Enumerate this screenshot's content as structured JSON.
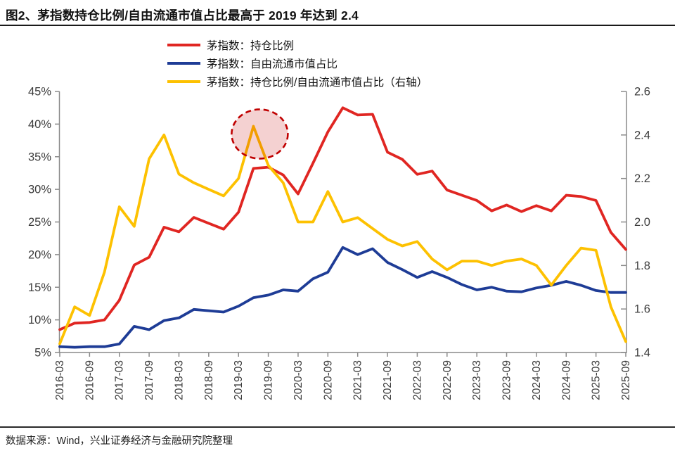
{
  "title": "图2、茅指数持仓比例/自由流通市值占比最高于 2019 年达到 2.4",
  "source": "数据来源：Wind，兴业证券经济与金融研究院整理",
  "chart_data": {
    "type": "line",
    "title": "茅指数持仓比例/自由流通市值占比最高于 2019 年达到 2.4",
    "grid": false,
    "legend_position": "top-center",
    "x_labels": [
      "2016-03",
      "2016-09",
      "2017-03",
      "2017-09",
      "2018-03",
      "2018-09",
      "2019-03",
      "2019-09",
      "2020-03",
      "2020-09",
      "2021-03",
      "2021-09",
      "2022-03",
      "2022-09",
      "2023-03",
      "2023-09",
      "2024-03",
      "2024-09",
      "2025-03",
      "2025-09"
    ],
    "points_per_label": 2,
    "left_axis": {
      "min": 5,
      "max": 45,
      "ticks": [
        "45%",
        "40%",
        "35%",
        "30%",
        "25%",
        "20%",
        "15%",
        "10%",
        "5%"
      ]
    },
    "right_axis": {
      "min": 1.4,
      "max": 2.6,
      "ticks": [
        "2.6",
        "2.4",
        "2.2",
        "2.0",
        "1.8",
        "1.6",
        "1.4"
      ]
    },
    "axis_color": "#8a8a8a",
    "tick_label_color": "#3c3c3c",
    "series": [
      {
        "name": "茅指数：持仓比例",
        "axis": "left",
        "color": "#e02622",
        "values": [
          8.5,
          9.5,
          9.6,
          10,
          13,
          18.4,
          19.6,
          24.2,
          23.5,
          25.7,
          24.8,
          23.9,
          26.5,
          33.2,
          33.4,
          32.2,
          29.3,
          34,
          38.8,
          42.5,
          41.4,
          41.5,
          35.7,
          34.6,
          32.3,
          32.8,
          29.9,
          29.1,
          28.3,
          26.7,
          27.6,
          26.6,
          27.5,
          26.7,
          29.1,
          28.9,
          28.3,
          23.4,
          20.8
        ]
      },
      {
        "name": "茅指数：自由流通市值占比",
        "axis": "left",
        "color": "#1e3c96",
        "values": [
          5.9,
          5.8,
          5.9,
          5.9,
          6.3,
          9.0,
          8.5,
          9.9,
          10.3,
          11.6,
          11.4,
          11.2,
          12.1,
          13.4,
          13.8,
          14.6,
          14.4,
          16.3,
          17.3,
          21.1,
          20.0,
          20.9,
          18.8,
          17.7,
          16.5,
          17.4,
          16.5,
          15.4,
          14.6,
          15.0,
          14.4,
          14.3,
          14.9,
          15.3,
          15.9,
          15.3,
          14.5,
          14.2,
          14.2
        ]
      },
      {
        "name": "茅指数：持仓比例/自由流通市值占比（右轴）",
        "axis": "right",
        "color": "#fdc101",
        "values": [
          1.44,
          1.61,
          1.57,
          1.77,
          2.07,
          1.98,
          2.29,
          2.4,
          2.22,
          2.18,
          2.15,
          2.12,
          2.2,
          2.44,
          2.26,
          2.18,
          2.0,
          2.0,
          2.14,
          2.0,
          2.02,
          1.97,
          1.92,
          1.89,
          1.91,
          1.83,
          1.78,
          1.82,
          1.82,
          1.8,
          1.82,
          1.83,
          1.8,
          1.71,
          1.8,
          1.88,
          1.87,
          1.61,
          1.45
        ]
      }
    ],
    "annotation": {
      "shape": "dashed-ellipse",
      "highlights": "2019 peak of ratio",
      "series_index": 2,
      "point_index": 13,
      "peak_value": 2.44,
      "stroke_color": "#c00000",
      "fill_color": "rgba(192,0,0,0.18)"
    }
  }
}
